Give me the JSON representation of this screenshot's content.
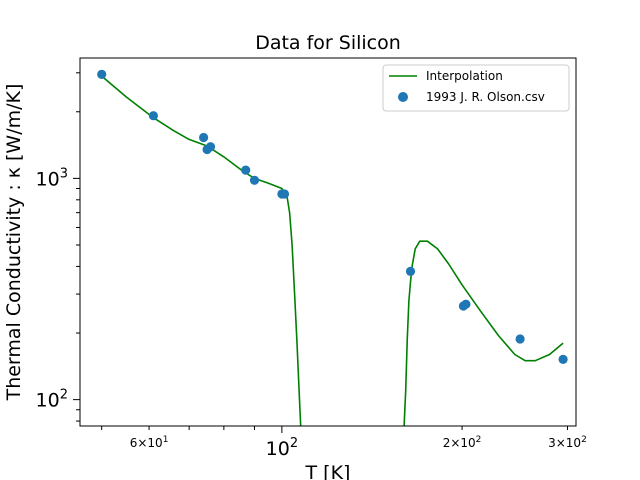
{
  "chart_data": {
    "type": "line",
    "title": "Data for Silicon",
    "xlabel": "T [K]",
    "ylabel": "Thermal Conductivity : κ [W/m/K]",
    "xscale": "log",
    "yscale": "log",
    "xlim": [
      46,
      310
    ],
    "ylim": [
      76,
      3500
    ],
    "grid": false,
    "legend_position": "top-right",
    "x_major_ticks": [
      {
        "value": 100,
        "base": "10",
        "exp": "2"
      }
    ],
    "x_minor_ticks": [
      {
        "value": 60,
        "base": "6×10",
        "exp": "1"
      },
      {
        "value": 200,
        "base": "2×10",
        "exp": "2"
      },
      {
        "value": 300,
        "base": "3×10",
        "exp": "2"
      }
    ],
    "y_major_ticks": [
      {
        "value": 100,
        "base": "10",
        "exp": "2"
      },
      {
        "value": 1000,
        "base": "10",
        "exp": "3"
      }
    ],
    "series": [
      {
        "name": "Interpolation",
        "kind": "line",
        "color": "#008000",
        "segments": [
          {
            "x": [
              50,
              55,
              61,
              66,
              70,
              75,
              80,
              86,
              90,
              95,
              100,
              102,
              103,
              104,
              105,
              106,
              107,
              107.5
            ],
            "y": [
              2900,
              2330,
              1880,
              1640,
              1500,
              1400,
              1250,
              1080,
              1000,
              950,
              900,
              830,
              700,
              500,
              300,
              180,
              100,
              76
            ]
          },
          {
            "x": [
              160,
              161,
              162,
              163,
              164,
              165,
              167,
              170,
              175,
              182,
              190,
              200,
              215,
              230,
              245,
              255,
              265,
              280,
              295
            ],
            "y": [
              76,
              110,
              190,
              280,
              340,
              400,
              480,
              520,
              520,
              480,
              410,
              330,
              250,
              195,
              160,
              150,
              150,
              160,
              180
            ]
          }
        ]
      },
      {
        "name": "1993 J. R. Olson.csv",
        "kind": "scatter",
        "color": "#1f77b4",
        "x": [
          50,
          61,
          74,
          75,
          76,
          87,
          90,
          100,
          101,
          164,
          201,
          203,
          250,
          295
        ],
        "y": [
          2950,
          1920,
          1530,
          1350,
          1390,
          1090,
          980,
          850,
          850,
          380,
          265,
          270,
          188,
          152
        ]
      }
    ]
  }
}
